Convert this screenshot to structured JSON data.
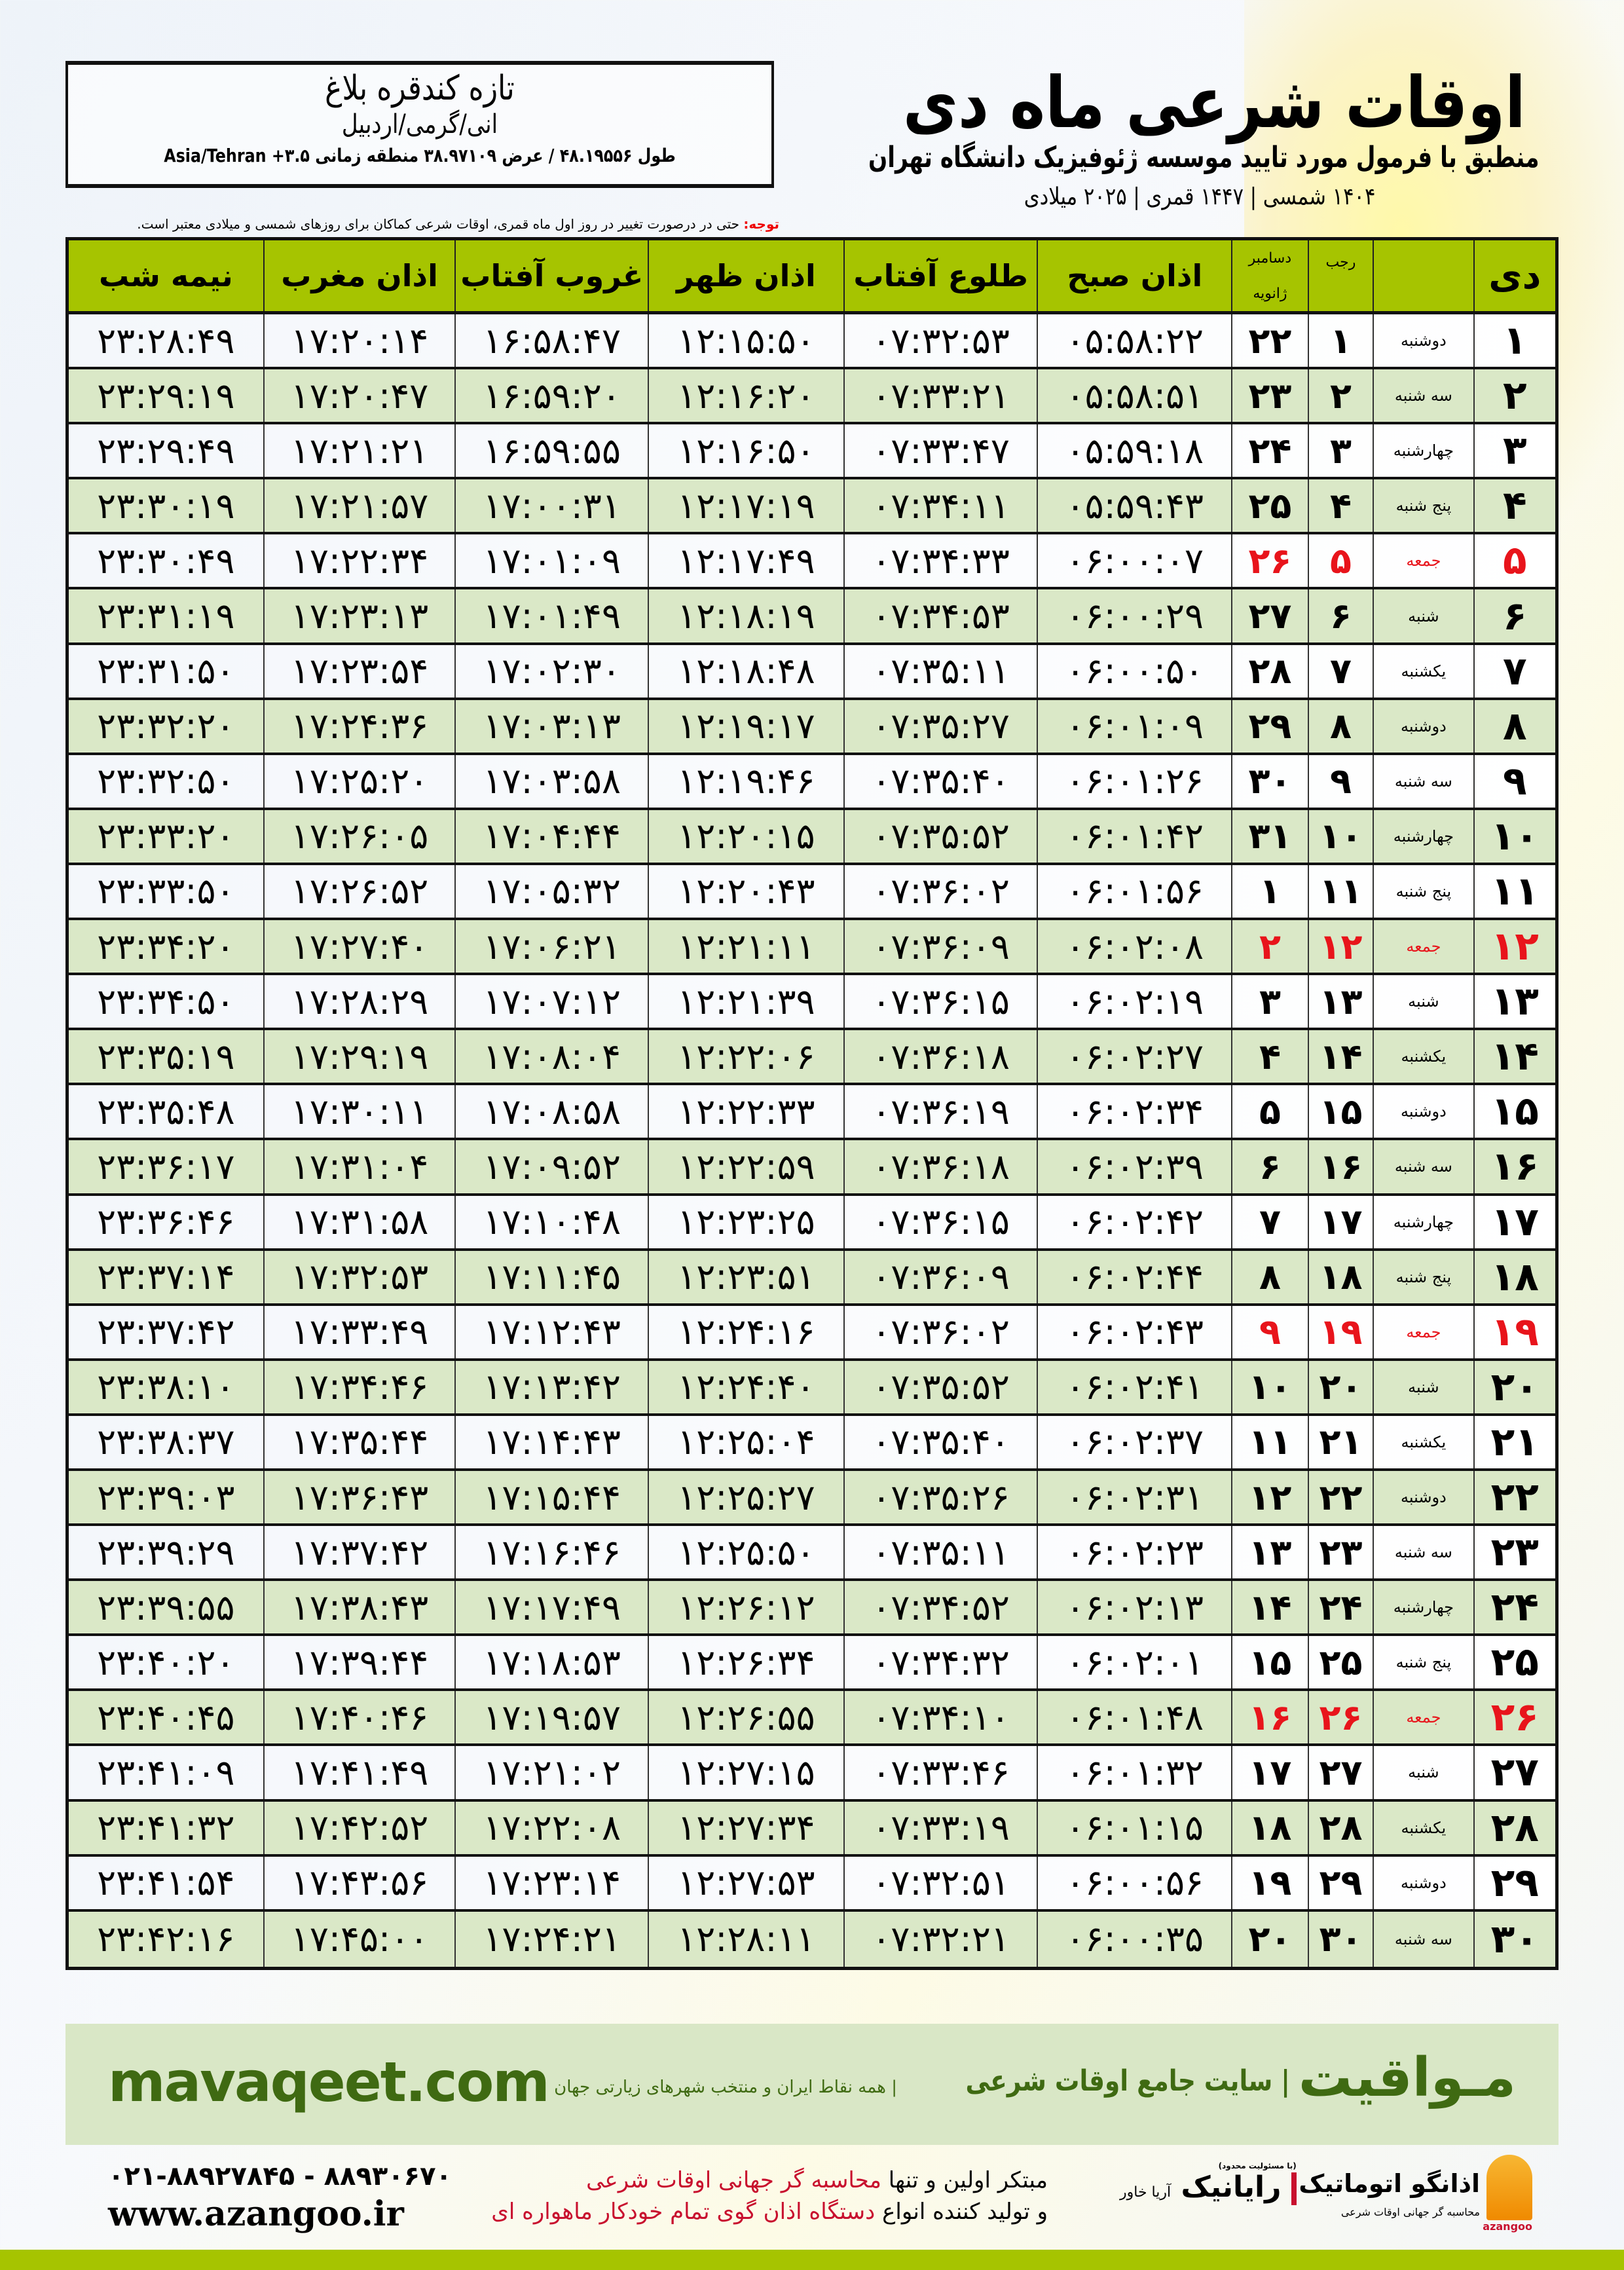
{
  "location": {
    "name": "تازه کندقره بلاغ",
    "region": "انی/گرمی/اردبیل",
    "coords": "طول ۴۸.۱۹۵۵۶ / عرض ۳۸.۹۷۱۰۹ منطقه زمانی ۳.۵+ Asia/Tehran"
  },
  "header": {
    "title": "اوقات شرعی ماه دی",
    "subtitle": "منطبق با فرمول مورد تایید موسسه ژئوفیزیک دانشگاه تهران",
    "years": "۱۴۰۴ شمسی | ۱۴۴۷ قمری | ۲۰۲۵ میلادی"
  },
  "note": {
    "label": "توجه:",
    "text": " حتی در درصورت تغییر در روز اول ماه قمری، اوقات شرعی کماکان برای روزهای شمسی و میلادی معتبر است."
  },
  "columns": {
    "day": "دی",
    "rajab": "رجب",
    "greg_top": "دسامبر",
    "greg_bottom": "ژانویه",
    "fajr": "اذان صبح",
    "sunrise": "طلوع آفتاب",
    "dhuhr": "اذان ظهر",
    "sunset": "غروب آفتاب",
    "maghrib": "اذان مغرب",
    "midnight": "نیمه شب"
  },
  "colors": {
    "header_green": "#a6c400",
    "row_green": "#dae8c7",
    "holiday_red": "#e8141b",
    "brand_green": "#3f6a12"
  },
  "rows": [
    [
      "۱",
      "دوشنبه",
      "۱",
      "۲۲",
      "۰۵:۵۸:۲۲",
      "۰۷:۳۲:۵۳",
      "۱۲:۱۵:۵۰",
      "۱۶:۵۸:۴۷",
      "۱۷:۲۰:۱۴",
      "۲۳:۲۸:۴۹",
      false
    ],
    [
      "۲",
      "سه شنبه",
      "۲",
      "۲۳",
      "۰۵:۵۸:۵۱",
      "۰۷:۳۳:۲۱",
      "۱۲:۱۶:۲۰",
      "۱۶:۵۹:۲۰",
      "۱۷:۲۰:۴۷",
      "۲۳:۲۹:۱۹",
      false
    ],
    [
      "۳",
      "چهارشنبه",
      "۳",
      "۲۴",
      "۰۵:۵۹:۱۸",
      "۰۷:۳۳:۴۷",
      "۱۲:۱۶:۵۰",
      "۱۶:۵۹:۵۵",
      "۱۷:۲۱:۲۱",
      "۲۳:۲۹:۴۹",
      false
    ],
    [
      "۴",
      "پنج شنبه",
      "۴",
      "۲۵",
      "۰۵:۵۹:۴۳",
      "۰۷:۳۴:۱۱",
      "۱۲:۱۷:۱۹",
      "۱۷:۰۰:۳۱",
      "۱۷:۲۱:۵۷",
      "۲۳:۳۰:۱۹",
      false
    ],
    [
      "۵",
      "جمعه",
      "۵",
      "۲۶",
      "۰۶:۰۰:۰۷",
      "۰۷:۳۴:۳۳",
      "۱۲:۱۷:۴۹",
      "۱۷:۰۱:۰۹",
      "۱۷:۲۲:۳۴",
      "۲۳:۳۰:۴۹",
      true
    ],
    [
      "۶",
      "شنبه",
      "۶",
      "۲۷",
      "۰۶:۰۰:۲۹",
      "۰۷:۳۴:۵۳",
      "۱۲:۱۸:۱۹",
      "۱۷:۰۱:۴۹",
      "۱۷:۲۳:۱۳",
      "۲۳:۳۱:۱۹",
      false
    ],
    [
      "۷",
      "یکشنبه",
      "۷",
      "۲۸",
      "۰۶:۰۰:۵۰",
      "۰۷:۳۵:۱۱",
      "۱۲:۱۸:۴۸",
      "۱۷:۰۲:۳۰",
      "۱۷:۲۳:۵۴",
      "۲۳:۳۱:۵۰",
      false
    ],
    [
      "۸",
      "دوشنبه",
      "۸",
      "۲۹",
      "۰۶:۰۱:۰۹",
      "۰۷:۳۵:۲۷",
      "۱۲:۱۹:۱۷",
      "۱۷:۰۳:۱۳",
      "۱۷:۲۴:۳۶",
      "۲۳:۳۲:۲۰",
      false
    ],
    [
      "۹",
      "سه شنبه",
      "۹",
      "۳۰",
      "۰۶:۰۱:۲۶",
      "۰۷:۳۵:۴۰",
      "۱۲:۱۹:۴۶",
      "۱۷:۰۳:۵۸",
      "۱۷:۲۵:۲۰",
      "۲۳:۳۲:۵۰",
      false
    ],
    [
      "۱۰",
      "چهارشنبه",
      "۱۰",
      "۳۱",
      "۰۶:۰۱:۴۲",
      "۰۷:۳۵:۵۲",
      "۱۲:۲۰:۱۵",
      "۱۷:۰۴:۴۴",
      "۱۷:۲۶:۰۵",
      "۲۳:۳۳:۲۰",
      false
    ],
    [
      "۱۱",
      "پنج شنبه",
      "۱۱",
      "۱",
      "۰۶:۰۱:۵۶",
      "۰۷:۳۶:۰۲",
      "۱۲:۲۰:۴۳",
      "۱۷:۰۵:۳۲",
      "۱۷:۲۶:۵۲",
      "۲۳:۳۳:۵۰",
      false
    ],
    [
      "۱۲",
      "جمعه",
      "۱۲",
      "۲",
      "۰۶:۰۲:۰۸",
      "۰۷:۳۶:۰۹",
      "۱۲:۲۱:۱۱",
      "۱۷:۰۶:۲۱",
      "۱۷:۲۷:۴۰",
      "۲۳:۳۴:۲۰",
      true
    ],
    [
      "۱۳",
      "شنبه",
      "۱۳",
      "۳",
      "۰۶:۰۲:۱۹",
      "۰۷:۳۶:۱۵",
      "۱۲:۲۱:۳۹",
      "۱۷:۰۷:۱۲",
      "۱۷:۲۸:۲۹",
      "۲۳:۳۴:۵۰",
      false
    ],
    [
      "۱۴",
      "یکشنبه",
      "۱۴",
      "۴",
      "۰۶:۰۲:۲۷",
      "۰۷:۳۶:۱۸",
      "۱۲:۲۲:۰۶",
      "۱۷:۰۸:۰۴",
      "۱۷:۲۹:۱۹",
      "۲۳:۳۵:۱۹",
      false
    ],
    [
      "۱۵",
      "دوشنبه",
      "۱۵",
      "۵",
      "۰۶:۰۲:۳۴",
      "۰۷:۳۶:۱۹",
      "۱۲:۲۲:۳۳",
      "۱۷:۰۸:۵۸",
      "۱۷:۳۰:۱۱",
      "۲۳:۳۵:۴۸",
      false
    ],
    [
      "۱۶",
      "سه شنبه",
      "۱۶",
      "۶",
      "۰۶:۰۲:۳۹",
      "۰۷:۳۶:۱۸",
      "۱۲:۲۲:۵۹",
      "۱۷:۰۹:۵۲",
      "۱۷:۳۱:۰۴",
      "۲۳:۳۶:۱۷",
      false
    ],
    [
      "۱۷",
      "چهارشنبه",
      "۱۷",
      "۷",
      "۰۶:۰۲:۴۲",
      "۰۷:۳۶:۱۵",
      "۱۲:۲۳:۲۵",
      "۱۷:۱۰:۴۸",
      "۱۷:۳۱:۵۸",
      "۲۳:۳۶:۴۶",
      false
    ],
    [
      "۱۸",
      "پنج شنبه",
      "۱۸",
      "۸",
      "۰۶:۰۲:۴۴",
      "۰۷:۳۶:۰۹",
      "۱۲:۲۳:۵۱",
      "۱۷:۱۱:۴۵",
      "۱۷:۳۲:۵۳",
      "۲۳:۳۷:۱۴",
      false
    ],
    [
      "۱۹",
      "جمعه",
      "۱۹",
      "۹",
      "۰۶:۰۲:۴۳",
      "۰۷:۳۶:۰۲",
      "۱۲:۲۴:۱۶",
      "۱۷:۱۲:۴۳",
      "۱۷:۳۳:۴۹",
      "۲۳:۳۷:۴۲",
      true
    ],
    [
      "۲۰",
      "شنبه",
      "۲۰",
      "۱۰",
      "۰۶:۰۲:۴۱",
      "۰۷:۳۵:۵۲",
      "۱۲:۲۴:۴۰",
      "۱۷:۱۳:۴۲",
      "۱۷:۳۴:۴۶",
      "۲۳:۳۸:۱۰",
      false
    ],
    [
      "۲۱",
      "یکشنبه",
      "۲۱",
      "۱۱",
      "۰۶:۰۲:۳۷",
      "۰۷:۳۵:۴۰",
      "۱۲:۲۵:۰۴",
      "۱۷:۱۴:۴۳",
      "۱۷:۳۵:۴۴",
      "۲۳:۳۸:۳۷",
      false
    ],
    [
      "۲۲",
      "دوشنبه",
      "۲۲",
      "۱۲",
      "۰۶:۰۲:۳۱",
      "۰۷:۳۵:۲۶",
      "۱۲:۲۵:۲۷",
      "۱۷:۱۵:۴۴",
      "۱۷:۳۶:۴۳",
      "۲۳:۳۹:۰۳",
      false
    ],
    [
      "۲۳",
      "سه شنبه",
      "۲۳",
      "۱۳",
      "۰۶:۰۲:۲۳",
      "۰۷:۳۵:۱۱",
      "۱۲:۲۵:۵۰",
      "۱۷:۱۶:۴۶",
      "۱۷:۳۷:۴۲",
      "۲۳:۳۹:۲۹",
      false
    ],
    [
      "۲۴",
      "چهارشنبه",
      "۲۴",
      "۱۴",
      "۰۶:۰۲:۱۳",
      "۰۷:۳۴:۵۲",
      "۱۲:۲۶:۱۲",
      "۱۷:۱۷:۴۹",
      "۱۷:۳۸:۴۳",
      "۲۳:۳۹:۵۵",
      false
    ],
    [
      "۲۵",
      "پنج شنبه",
      "۲۵",
      "۱۵",
      "۰۶:۰۲:۰۱",
      "۰۷:۳۴:۳۲",
      "۱۲:۲۶:۳۴",
      "۱۷:۱۸:۵۳",
      "۱۷:۳۹:۴۴",
      "۲۳:۴۰:۲۰",
      false
    ],
    [
      "۲۶",
      "جمعه",
      "۲۶",
      "۱۶",
      "۰۶:۰۱:۴۸",
      "۰۷:۳۴:۱۰",
      "۱۲:۲۶:۵۵",
      "۱۷:۱۹:۵۷",
      "۱۷:۴۰:۴۶",
      "۲۳:۴۰:۴۵",
      true
    ],
    [
      "۲۷",
      "شنبه",
      "۲۷",
      "۱۷",
      "۰۶:۰۱:۳۲",
      "۰۷:۳۳:۴۶",
      "۱۲:۲۷:۱۵",
      "۱۷:۲۱:۰۲",
      "۱۷:۴۱:۴۹",
      "۲۳:۴۱:۰۹",
      false
    ],
    [
      "۲۸",
      "یکشنبه",
      "۲۸",
      "۱۸",
      "۰۶:۰۱:۱۵",
      "۰۷:۳۳:۱۹",
      "۱۲:۲۷:۳۴",
      "۱۷:۲۲:۰۸",
      "۱۷:۴۲:۵۲",
      "۲۳:۴۱:۳۲",
      false
    ],
    [
      "۲۹",
      "دوشنبه",
      "۲۹",
      "۱۹",
      "۰۶:۰۰:۵۶",
      "۰۷:۳۲:۵۱",
      "۱۲:۲۷:۵۳",
      "۱۷:۲۳:۱۴",
      "۱۷:۴۳:۵۶",
      "۲۳:۴۱:۵۴",
      false
    ],
    [
      "۳۰",
      "سه شنبه",
      "۳۰",
      "۲۰",
      "۰۶:۰۰:۳۵",
      "۰۷:۳۲:۲۱",
      "۱۲:۲۸:۱۱",
      "۱۷:۲۴:۲۱",
      "۱۷:۴۵:۰۰",
      "۲۳:۴۲:۱۶",
      false
    ]
  ],
  "footer": {
    "brand": "مـواقیت",
    "tagline": "| سایت جامع اوقات شرعی",
    "tagline_small": "| همه نقاط ایران و منتخب شهرهای زیارتی جهان",
    "site": "mavaqeet.com",
    "slogan_line1_a": "مبتکر اولین و تنها ",
    "slogan_line1_b": "محاسبه گر جهانی اوقات شرعی",
    "slogan_line2_a": "و تولید کننده انواع ",
    "slogan_line2_b": "دستگاه اذان گوی تمام خودکار ماهواره ای",
    "phone": "۰۲۱-۸۸۹۲۷۸۴۵ - ۸۸۹۳۰۶۷۰",
    "web": "www.azangoo.ir",
    "logo_rayanik": "رایانیک",
    "logo_rayanik_sub": "آریا خاور",
    "logo_rayanik_note": "(با مسئولیت محدود)",
    "logo_azangoo": "اذانگو اتوماتیک",
    "logo_azangoo_sub": "محاسبه گر جهانی اوقات شرعی",
    "logo_azangoo_en": "azangoo"
  }
}
